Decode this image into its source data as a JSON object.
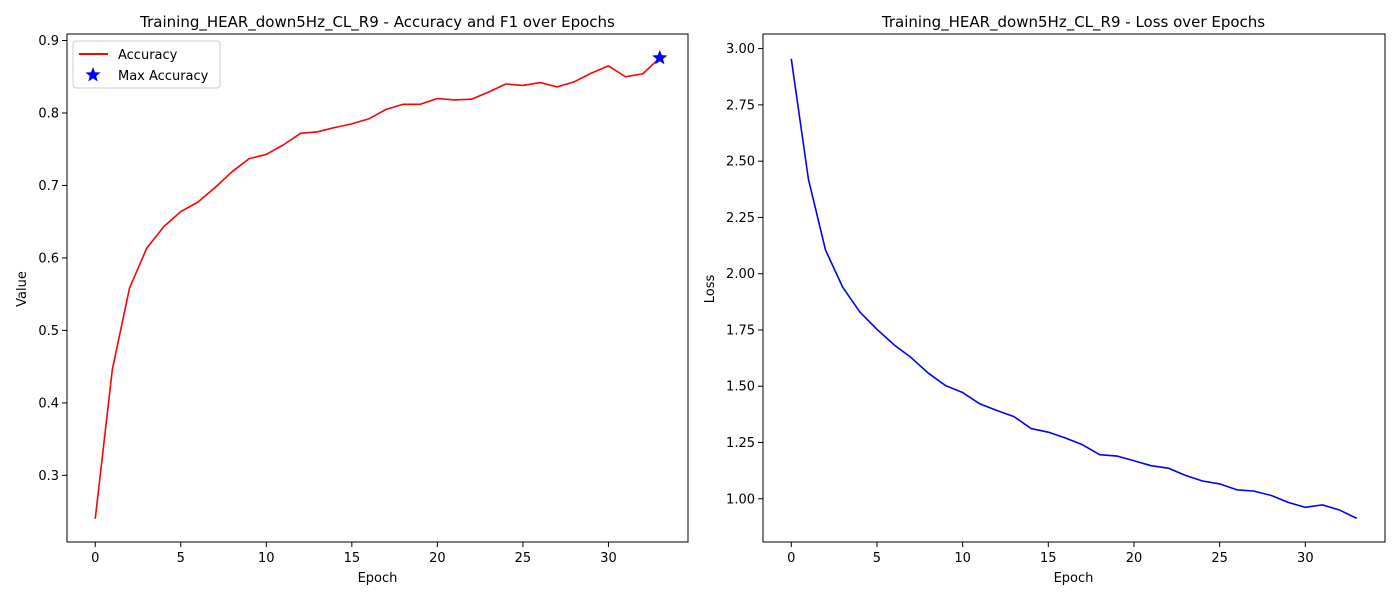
{
  "chart_data": [
    {
      "type": "line",
      "title": "Training_HEAR_down5Hz_CL_R9 - Accuracy and F1 over Epochs",
      "xlabel": "Epoch",
      "ylabel": "Value",
      "xlim": [
        -1.65,
        34.65
      ],
      "ylim": [
        0.208,
        0.909
      ],
      "x_ticks": [
        0,
        5,
        10,
        15,
        20,
        25,
        30
      ],
      "y_ticks": [
        0.3,
        0.4,
        0.5,
        0.6,
        0.7,
        0.8,
        0.9
      ],
      "grid": false,
      "legend_position": "top-left",
      "series": [
        {
          "name": "Accuracy",
          "color": "#ff0000",
          "x": [
            0,
            1,
            2,
            3,
            4,
            5,
            6,
            7,
            8,
            9,
            10,
            11,
            12,
            13,
            14,
            15,
            16,
            17,
            18,
            19,
            20,
            21,
            22,
            23,
            24,
            25,
            26,
            27,
            28,
            29,
            30,
            31,
            32,
            33
          ],
          "values": [
            0.24,
            0.446,
            0.558,
            0.613,
            0.643,
            0.664,
            0.677,
            0.697,
            0.719,
            0.737,
            0.743,
            0.756,
            0.772,
            0.774,
            0.78,
            0.785,
            0.792,
            0.805,
            0.812,
            0.812,
            0.82,
            0.818,
            0.819,
            0.829,
            0.84,
            0.838,
            0.842,
            0.836,
            0.843,
            0.855,
            0.865,
            0.85,
            0.854,
            0.876
          ]
        }
      ],
      "markers": [
        {
          "name": "Max Accuracy",
          "x": 33,
          "y": 0.876,
          "color": "#0000ff",
          "shape": "star"
        }
      ]
    },
    {
      "type": "line",
      "title": "Training_HEAR_down5Hz_CL_R9 - Loss over Epochs",
      "xlabel": "Epoch",
      "ylabel": "Loss",
      "xlim": [
        -1.65,
        34.65
      ],
      "ylim": [
        0.808,
        3.065
      ],
      "x_ticks": [
        0,
        5,
        10,
        15,
        20,
        25,
        30
      ],
      "y_ticks": [
        1.0,
        1.25,
        1.5,
        1.75,
        2.0,
        2.25,
        2.5,
        2.75,
        3.0
      ],
      "y_tick_labels": [
        "1.00",
        "1.25",
        "1.50",
        "1.75",
        "2.00",
        "2.25",
        "2.50",
        "2.75",
        "3.00"
      ],
      "grid": false,
      "series": [
        {
          "color": "#0000ff",
          "x": [
            0,
            1,
            2,
            3,
            4,
            5,
            6,
            7,
            8,
            9,
            10,
            11,
            12,
            13,
            14,
            15,
            16,
            17,
            18,
            19,
            20,
            21,
            22,
            23,
            24,
            25,
            26,
            27,
            28,
            29,
            30,
            31,
            32,
            33
          ],
          "values": [
            2.955,
            2.42,
            2.105,
            1.94,
            1.83,
            1.753,
            1.684,
            1.627,
            1.558,
            1.503,
            1.472,
            1.422,
            1.392,
            1.365,
            1.312,
            1.296,
            1.27,
            1.24,
            1.196,
            1.19,
            1.169,
            1.147,
            1.136,
            1.104,
            1.079,
            1.066,
            1.04,
            1.034,
            1.015,
            0.984,
            0.962,
            0.973,
            0.95,
            0.913
          ]
        }
      ]
    }
  ]
}
